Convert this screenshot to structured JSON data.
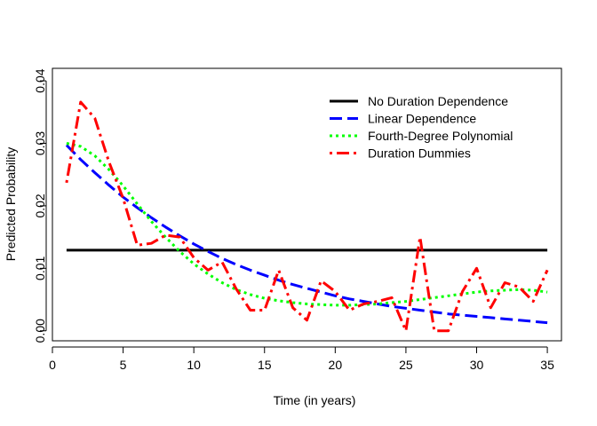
{
  "chart_data": {
    "type": "line",
    "title": "",
    "xlabel": "Time (in years)",
    "ylabel": "Predicted Probability",
    "xlim": [
      0,
      36
    ],
    "ylim": [
      -0.0016,
      0.042
    ],
    "x_ticks": [
      0,
      5,
      10,
      15,
      20,
      25,
      30,
      35
    ],
    "x_tick_labels": [
      "0",
      "5",
      "10",
      "15",
      "20",
      "25",
      "30",
      "35"
    ],
    "y_ticks": [
      0.0,
      0.01,
      0.02,
      0.03,
      0.04
    ],
    "y_tick_labels": [
      "0.00",
      "0.01",
      "0.02",
      "0.03",
      "0.04"
    ],
    "grid": false,
    "legend_position": "top-right",
    "series": [
      {
        "name": "No Duration Dependence",
        "color": "#000000",
        "dash": "solid",
        "x": [
          1,
          35
        ],
        "y": [
          0.0129,
          0.0129
        ]
      },
      {
        "name": "Linear Dependence",
        "color": "#0000ff",
        "dash": "dashed",
        "x": [
          1,
          2,
          3,
          4,
          5,
          6,
          7,
          8,
          9,
          10,
          11,
          12,
          13,
          14,
          15,
          16,
          17,
          18,
          19,
          20,
          21,
          22,
          23,
          24,
          25,
          26,
          27,
          28,
          29,
          30,
          31,
          32,
          33,
          34,
          35
        ],
        "y": [
          0.0297,
          0.0274,
          0.0253,
          0.0233,
          0.0214,
          0.0197,
          0.0181,
          0.0166,
          0.0152,
          0.0139,
          0.0127,
          0.0116,
          0.0106,
          0.0097,
          0.0089,
          0.0081,
          0.0074,
          0.0068,
          0.0062,
          0.0056,
          0.0051,
          0.0047,
          0.0043,
          0.0039,
          0.0036,
          0.0033,
          0.003,
          0.0027,
          0.0025,
          0.0023,
          0.0021,
          0.0019,
          0.0017,
          0.0015,
          0.0013
        ]
      },
      {
        "name": "Fourth-Degree Polynomial",
        "color": "#00ff00",
        "dash": "dotted",
        "x": [
          1,
          2,
          3,
          4,
          5,
          6,
          7,
          8,
          9,
          10,
          11,
          12,
          13,
          14,
          15,
          16,
          17,
          18,
          19,
          20,
          21,
          22,
          23,
          24,
          25,
          26,
          27,
          28,
          29,
          30,
          31,
          32,
          33,
          34,
          35
        ],
        "y": [
          0.03,
          0.0295,
          0.028,
          0.0258,
          0.0232,
          0.0203,
          0.0175,
          0.015,
          0.0127,
          0.0107,
          0.0091,
          0.0077,
          0.0066,
          0.0058,
          0.0052,
          0.0048,
          0.0045,
          0.0043,
          0.0042,
          0.0041,
          0.0041,
          0.0042,
          0.0043,
          0.0045,
          0.0047,
          0.005,
          0.0053,
          0.0056,
          0.0059,
          0.0062,
          0.0064,
          0.0065,
          0.0066,
          0.0065,
          0.0062
        ]
      },
      {
        "name": "Duration Dummies",
        "color": "#ff0000",
        "dash": "dotdash",
        "x": [
          1,
          2,
          3,
          4,
          5,
          6,
          7,
          8,
          9,
          10,
          11,
          12,
          13,
          14,
          15,
          16,
          17,
          18,
          19,
          20,
          21,
          22,
          23,
          24,
          25,
          26,
          27,
          28,
          29,
          30,
          31,
          32,
          33,
          34,
          35
        ],
        "y": [
          0.0237,
          0.0366,
          0.034,
          0.027,
          0.0212,
          0.0137,
          0.014,
          0.0153,
          0.015,
          0.0117,
          0.0097,
          0.011,
          0.0067,
          0.0033,
          0.0033,
          0.0097,
          0.0037,
          0.0017,
          0.008,
          0.0063,
          0.0033,
          0.0043,
          0.0047,
          0.0053,
          0.0,
          0.015,
          0.0,
          0.0,
          0.0063,
          0.01,
          0.0037,
          0.0077,
          0.007,
          0.0047,
          0.0097
        ]
      }
    ]
  }
}
